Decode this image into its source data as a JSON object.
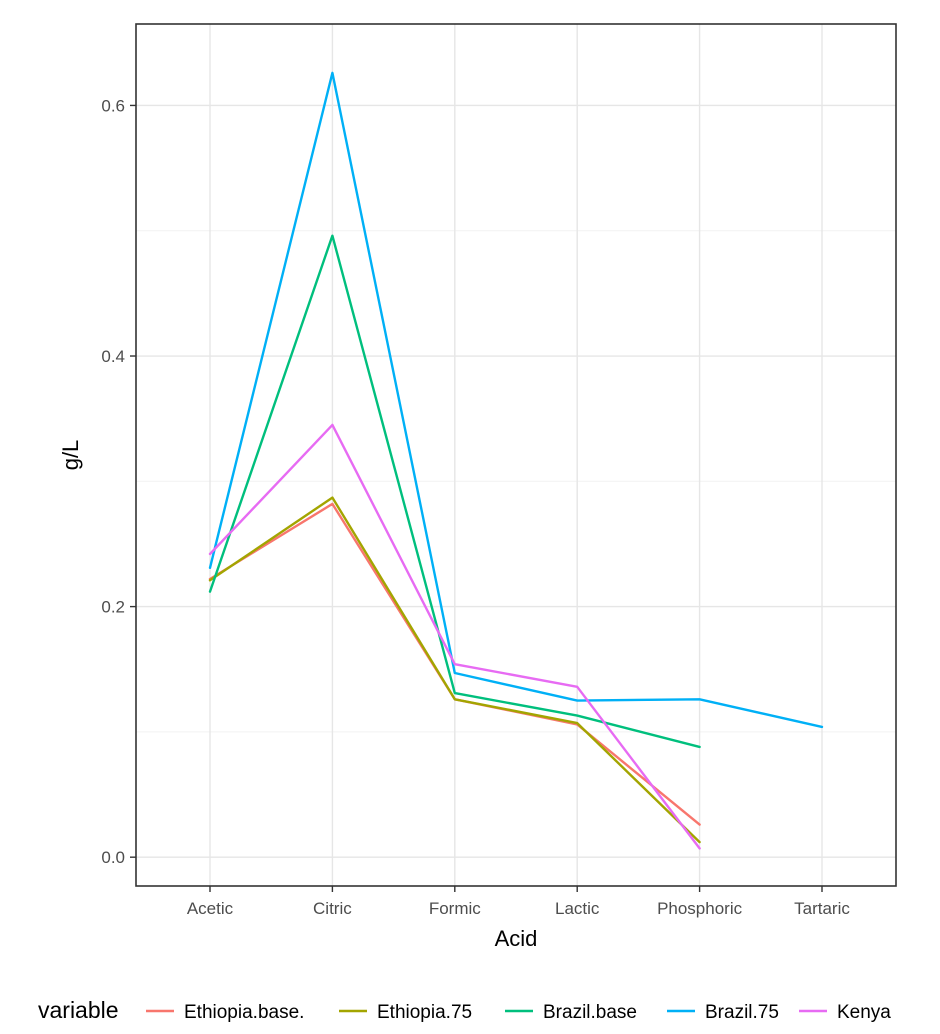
{
  "chart_data": {
    "type": "line",
    "xlabel": "Acid",
    "ylabel": "g/L",
    "categories": [
      "Acetic",
      "Citric",
      "Formic",
      "Lactic",
      "Phosphoric",
      "Tartaric"
    ],
    "ylim": [
      -0.023,
      0.665
    ],
    "yticks": [
      0.0,
      0.2,
      0.4,
      0.6
    ],
    "ytick_labels": [
      "0.0",
      "0.2",
      "0.4",
      "0.6"
    ],
    "grid": true,
    "legend": {
      "position": "bottom",
      "title": "variable"
    },
    "series": [
      {
        "name": "Ethiopia.base.",
        "color": "#F8766D",
        "values": [
          0.222,
          0.282,
          0.126,
          0.106,
          0.026,
          null
        ]
      },
      {
        "name": "Ethiopia.75",
        "color": "#A3A500",
        "values": [
          0.221,
          0.287,
          0.126,
          0.107,
          0.012,
          null
        ]
      },
      {
        "name": "Brazil.base",
        "color": "#00BF7D",
        "values": [
          0.212,
          0.496,
          0.131,
          0.113,
          0.088,
          null
        ]
      },
      {
        "name": "Brazil.75",
        "color": "#00B0F6",
        "values": [
          0.231,
          0.626,
          0.147,
          0.125,
          0.126,
          0.104
        ]
      },
      {
        "name": "Kenya",
        "color": "#E76BF3",
        "values": [
          0.242,
          0.345,
          0.154,
          0.136,
          0.007,
          null
        ]
      }
    ]
  }
}
